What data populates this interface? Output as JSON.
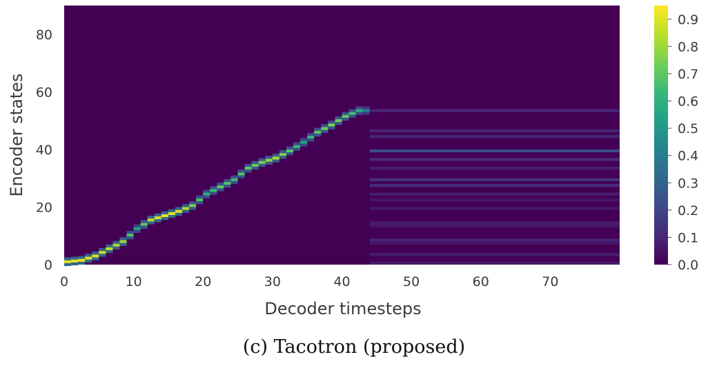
{
  "chart_data": {
    "type": "heatmap",
    "title": "",
    "xlabel": "Decoder timesteps",
    "ylabel": "Encoder states",
    "x_range": [
      0,
      80
    ],
    "y_range": [
      0,
      90
    ],
    "x_ticks": [
      "0",
      "10",
      "20",
      "30",
      "40",
      "50",
      "60",
      "70"
    ],
    "y_ticks": [
      "0",
      "20",
      "40",
      "60",
      "80"
    ],
    "colorbar": {
      "colormap": "viridis",
      "range": [
        0.0,
        0.95
      ],
      "ticks": [
        "0.0",
        "0.1",
        "0.2",
        "0.3",
        "0.4",
        "0.5",
        "0.6",
        "0.7",
        "0.8",
        "0.9"
      ]
    },
    "grid": false,
    "alignment_path": [
      {
        "x": 0,
        "y": 0.5,
        "v": 0.9
      },
      {
        "x": 2,
        "y": 1,
        "v": 0.92
      },
      {
        "x": 4,
        "y": 2.5,
        "v": 0.88
      },
      {
        "x": 6,
        "y": 5,
        "v": 0.85
      },
      {
        "x": 8,
        "y": 7.5,
        "v": 0.8
      },
      {
        "x": 10,
        "y": 12,
        "v": 0.55
      },
      {
        "x": 12,
        "y": 15,
        "v": 0.85
      },
      {
        "x": 14,
        "y": 16.5,
        "v": 0.92
      },
      {
        "x": 16,
        "y": 18,
        "v": 0.9
      },
      {
        "x": 18,
        "y": 20,
        "v": 0.75
      },
      {
        "x": 20,
        "y": 24,
        "v": 0.6
      },
      {
        "x": 22,
        "y": 26.5,
        "v": 0.7
      },
      {
        "x": 24,
        "y": 29,
        "v": 0.65
      },
      {
        "x": 26,
        "y": 33,
        "v": 0.7
      },
      {
        "x": 28,
        "y": 35,
        "v": 0.75
      },
      {
        "x": 30,
        "y": 36.5,
        "v": 0.82
      },
      {
        "x": 32,
        "y": 39,
        "v": 0.7
      },
      {
        "x": 34,
        "y": 42,
        "v": 0.55
      },
      {
        "x": 36,
        "y": 45.5,
        "v": 0.7
      },
      {
        "x": 38,
        "y": 48,
        "v": 0.75
      },
      {
        "x": 40,
        "y": 51,
        "v": 0.72
      },
      {
        "x": 42,
        "y": 53,
        "v": 0.6
      },
      {
        "x": 43,
        "y": 53,
        "v": 0.4
      }
    ],
    "residual_bands": [
      {
        "y": 53,
        "v": 0.1
      },
      {
        "y": 46,
        "v": 0.1
      },
      {
        "y": 44,
        "v": 0.1
      },
      {
        "y": 39,
        "v": 0.22
      },
      {
        "y": 36,
        "v": 0.12
      },
      {
        "y": 33,
        "v": 0.08
      },
      {
        "y": 29,
        "v": 0.15
      },
      {
        "y": 27,
        "v": 0.12
      },
      {
        "y": 24,
        "v": 0.08
      },
      {
        "y": 22,
        "v": 0.06
      },
      {
        "y": 19,
        "v": 0.06
      },
      {
        "y": 14,
        "v": 0.07
      },
      {
        "y": 13,
        "v": 0.06
      },
      {
        "y": 8,
        "v": 0.1
      },
      {
        "y": 7,
        "v": 0.06
      },
      {
        "y": 3,
        "v": 0.08
      },
      {
        "y": 0,
        "v": 0.07
      }
    ],
    "caption": "(c)  Tacotron (proposed)"
  }
}
